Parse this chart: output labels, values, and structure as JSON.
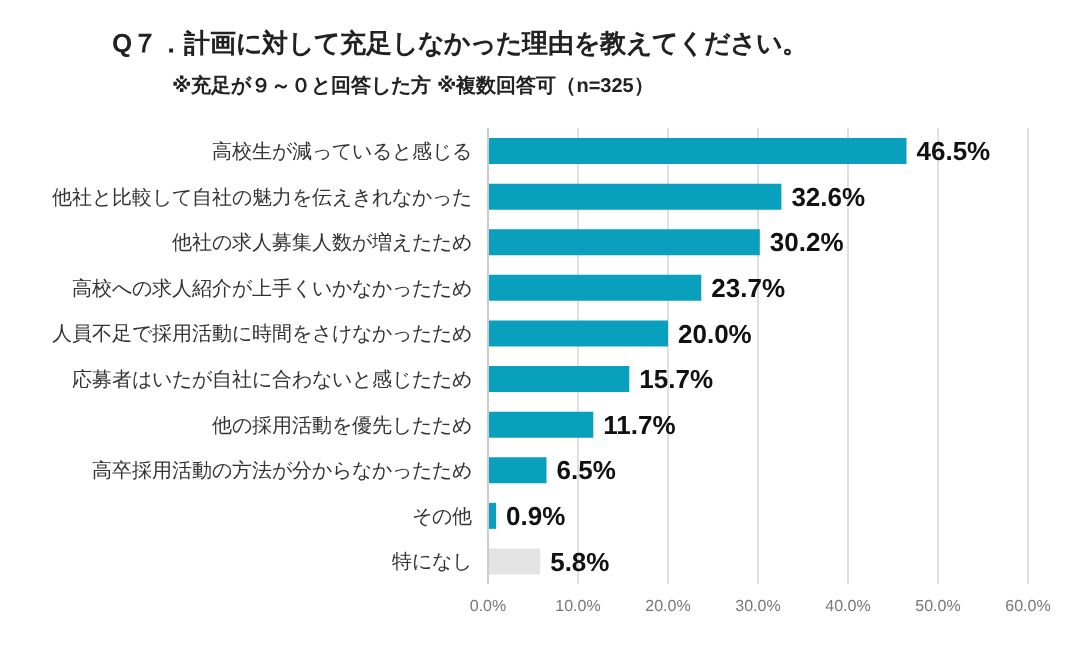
{
  "chart_data": {
    "type": "bar",
    "orientation": "horizontal",
    "title": "Q７．計画に対して充足しなかった理由を教えてください。",
    "subtitle": "※充足が９～０と回答した方 ※複数回答可（n=325）",
    "categories": [
      "高校生が減っていると感じる",
      "他社と比較して自社の魅力を伝えきれなかった",
      "他社の求人募集人数が増えたため",
      "高校への求人紹介が上手くいかなかったため",
      "人員不足で採用活動に時間をさけなかったため",
      "応募者はいたが自社に合わないと感じたため",
      "他の採用活動を優先したため",
      "高卒採用活動の方法が分からなかったため",
      "その他",
      "特になし"
    ],
    "values": [
      46.5,
      32.6,
      30.2,
      23.7,
      20.0,
      15.7,
      11.7,
      6.5,
      0.9,
      5.8
    ],
    "value_labels": [
      "46.5%",
      "32.6%",
      "30.2%",
      "23.7%",
      "20.0%",
      "15.7%",
      "11.7%",
      "6.5%",
      "0.9%",
      "5.8%"
    ],
    "colors": [
      "#08a0bc",
      "#08a0bc",
      "#08a0bc",
      "#08a0bc",
      "#08a0bc",
      "#08a0bc",
      "#08a0bc",
      "#08a0bc",
      "#08a0bc",
      "#e4e4e4"
    ],
    "xlim": [
      0,
      60
    ],
    "xticks": [
      {
        "value": 0,
        "label": "0.0%"
      },
      {
        "value": 10,
        "label": "10.0%"
      },
      {
        "value": 20,
        "label": "20.0%"
      },
      {
        "value": 30,
        "label": "30.0%"
      },
      {
        "value": 40,
        "label": "40.0%"
      },
      {
        "value": 50,
        "label": "50.0%"
      },
      {
        "value": 60,
        "label": "60.0%"
      }
    ],
    "grid": "x"
  }
}
